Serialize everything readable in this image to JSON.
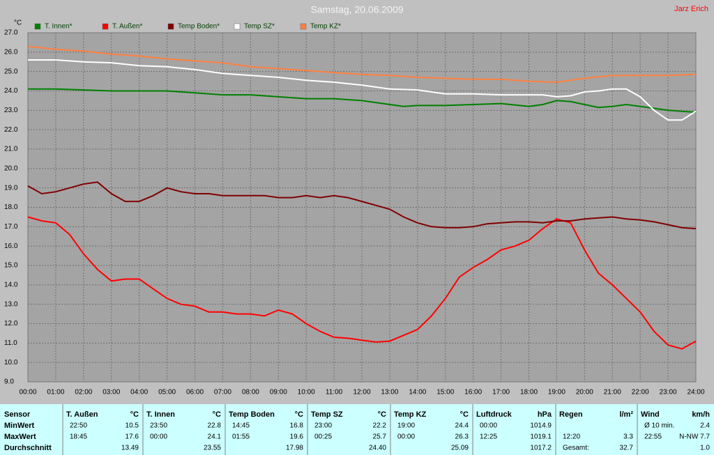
{
  "chart_data": {
    "type": "line",
    "title": "Samstag, 20.06.2009",
    "author": "Jarz Erich",
    "y_label": "°C",
    "series": [
      {
        "name": "T. Innen*",
        "color": "#008000",
        "x": [
          0,
          1,
          2,
          3,
          4,
          5,
          6,
          7,
          8,
          9,
          10,
          11,
          12,
          13,
          13.5,
          14,
          15,
          16,
          17,
          18,
          18.5,
          19,
          19.5,
          20,
          20.5,
          21,
          21.5,
          22,
          22.5,
          23,
          23.5,
          24
        ],
        "values": [
          24.1,
          24.1,
          24.05,
          24.0,
          24.0,
          24.0,
          23.9,
          23.8,
          23.8,
          23.7,
          23.6,
          23.6,
          23.5,
          23.3,
          23.2,
          23.25,
          23.25,
          23.3,
          23.35,
          23.2,
          23.3,
          23.5,
          23.45,
          23.3,
          23.15,
          23.2,
          23.3,
          23.2,
          23.1,
          23.0,
          22.95,
          22.9
        ]
      },
      {
        "name": "T. Außen*",
        "color": "#ff0000",
        "x": [
          0,
          0.5,
          1,
          1.5,
          2,
          2.5,
          3,
          3.5,
          4,
          4.5,
          5,
          5.5,
          6,
          6.5,
          7,
          7.5,
          8,
          8.5,
          9,
          9.5,
          10,
          10.5,
          11,
          11.5,
          12,
          12.5,
          13,
          13.5,
          14,
          14.5,
          15,
          15.5,
          16,
          16.5,
          17,
          17.5,
          18,
          18.5,
          19,
          19.5,
          20,
          20.5,
          21,
          21.5,
          22,
          22.5,
          23,
          23.5,
          24
        ],
        "values": [
          17.5,
          17.3,
          17.2,
          16.6,
          15.6,
          14.8,
          14.2,
          14.3,
          14.3,
          13.8,
          13.3,
          13.0,
          12.9,
          12.6,
          12.6,
          12.5,
          12.5,
          12.4,
          12.7,
          12.5,
          12.0,
          11.6,
          11.3,
          11.25,
          11.15,
          11.05,
          11.1,
          11.4,
          11.7,
          12.4,
          13.3,
          14.4,
          14.9,
          15.3,
          15.8,
          16.0,
          16.3,
          16.9,
          17.4,
          17.2,
          15.8,
          14.6,
          14.0,
          13.3,
          12.6,
          11.6,
          10.9,
          10.7,
          11.1
        ]
      },
      {
        "name": "Temp Boden*",
        "color": "#800000",
        "x": [
          0,
          0.5,
          1,
          1.5,
          2,
          2.5,
          3,
          3.5,
          4,
          4.5,
          5,
          5.5,
          6,
          6.5,
          7,
          7.5,
          8,
          8.5,
          9,
          9.5,
          10,
          10.5,
          11,
          11.5,
          12,
          12.5,
          13,
          13.5,
          14,
          14.5,
          15,
          15.5,
          16,
          16.5,
          17,
          17.5,
          18,
          18.5,
          19,
          19.5,
          20,
          20.5,
          21,
          21.5,
          22,
          22.5,
          23,
          23.5,
          24
        ],
        "values": [
          19.1,
          18.7,
          18.8,
          19.0,
          19.2,
          19.3,
          18.7,
          18.3,
          18.3,
          18.6,
          19.0,
          18.8,
          18.7,
          18.7,
          18.6,
          18.6,
          18.6,
          18.6,
          18.5,
          18.5,
          18.6,
          18.5,
          18.6,
          18.5,
          18.3,
          18.1,
          17.9,
          17.5,
          17.2,
          17.0,
          16.95,
          16.95,
          17.0,
          17.15,
          17.2,
          17.25,
          17.25,
          17.2,
          17.3,
          17.3,
          17.4,
          17.45,
          17.5,
          17.4,
          17.35,
          17.25,
          17.1,
          16.95,
          16.9
        ]
      },
      {
        "name": "Temp SZ*",
        "color": "#ffffff",
        "x": [
          0,
          1,
          2,
          3,
          4,
          5,
          6,
          7,
          8,
          9,
          10,
          11,
          12,
          13,
          14,
          15,
          16,
          17,
          18,
          18.5,
          19,
          19.5,
          20,
          20.5,
          21,
          21.5,
          22,
          22.5,
          23,
          23.5,
          24
        ],
        "values": [
          25.6,
          25.6,
          25.5,
          25.45,
          25.3,
          25.25,
          25.1,
          24.9,
          24.8,
          24.7,
          24.55,
          24.45,
          24.3,
          24.1,
          24.05,
          23.85,
          23.85,
          23.8,
          23.8,
          23.8,
          23.7,
          23.75,
          23.95,
          24.0,
          24.1,
          24.1,
          23.7,
          23.0,
          22.5,
          22.5,
          22.95
        ]
      },
      {
        "name": "Temp KZ*",
        "color": "#ff8040",
        "x": [
          0,
          1,
          2,
          3,
          4,
          5,
          6,
          7,
          8,
          9,
          10,
          11,
          12,
          13,
          14,
          15,
          16,
          17,
          18,
          19,
          20,
          21,
          22,
          23,
          24
        ],
        "values": [
          26.3,
          26.15,
          26.05,
          25.9,
          25.8,
          25.65,
          25.55,
          25.45,
          25.25,
          25.15,
          25.05,
          24.95,
          24.85,
          24.8,
          24.7,
          24.65,
          24.6,
          24.6,
          24.5,
          24.45,
          24.65,
          24.8,
          24.8,
          24.8,
          24.85
        ]
      }
    ],
    "xlim": [
      0,
      24
    ],
    "xticks": [
      {
        "value": 0,
        "label": "00:00"
      },
      {
        "value": 1,
        "label": "01:00"
      },
      {
        "value": 2,
        "label": "02:00"
      },
      {
        "value": 3,
        "label": "03:00"
      },
      {
        "value": 4,
        "label": "04:00"
      },
      {
        "value": 5,
        "label": "05:00"
      },
      {
        "value": 6,
        "label": "06:00"
      },
      {
        "value": 7,
        "label": "07:00"
      },
      {
        "value": 8,
        "label": "08:00"
      },
      {
        "value": 9,
        "label": "09:00"
      },
      {
        "value": 10,
        "label": "10:00"
      },
      {
        "value": 11,
        "label": "11:00"
      },
      {
        "value": 12,
        "label": "12:00"
      },
      {
        "value": 13,
        "label": "13:00"
      },
      {
        "value": 14,
        "label": "14:00"
      },
      {
        "value": 15,
        "label": "15:00"
      },
      {
        "value": 16,
        "label": "16:00"
      },
      {
        "value": 17,
        "label": "17:00"
      },
      {
        "value": 18,
        "label": "18:00"
      },
      {
        "value": 19,
        "label": "19:00"
      },
      {
        "value": 20,
        "label": "20:00"
      },
      {
        "value": 21,
        "label": "21:00"
      },
      {
        "value": 22,
        "label": "22:00"
      },
      {
        "value": 23,
        "label": "23:00"
      },
      {
        "value": 24,
        "label": "24:00"
      }
    ],
    "ylim": [
      9,
      27
    ],
    "yticks": [
      {
        "value": 9,
        "label": "9.0"
      },
      {
        "value": 10,
        "label": "10.0"
      },
      {
        "value": 11,
        "label": "11.0"
      },
      {
        "value": 12,
        "label": "12.0"
      },
      {
        "value": 13,
        "label": "13.0"
      },
      {
        "value": 14,
        "label": "14.0"
      },
      {
        "value": 15,
        "label": "15.0"
      },
      {
        "value": 16,
        "label": "16.0"
      },
      {
        "value": 17,
        "label": "17.0"
      },
      {
        "value": 18,
        "label": "18.0"
      },
      {
        "value": 19,
        "label": "19.0"
      },
      {
        "value": 20,
        "label": "20.0"
      },
      {
        "value": 21,
        "label": "21.0"
      },
      {
        "value": 22,
        "label": "22.0"
      },
      {
        "value": 23,
        "label": "23.0"
      },
      {
        "value": 24,
        "label": "24.0"
      },
      {
        "value": 25,
        "label": "25.0"
      },
      {
        "value": 26,
        "label": "26.0"
      },
      {
        "value": 27,
        "label": "27.0"
      }
    ],
    "grid": true
  },
  "table": {
    "row_labels": [
      "Sensor",
      "MinWert",
      "MaxWert",
      "Durchschnitt"
    ],
    "columns": [
      {
        "name": "T. Außen",
        "unit": "°C",
        "rows": [
          [
            "22:50",
            "10.5"
          ],
          [
            "18:45",
            "17.6"
          ],
          [
            null,
            "13.49"
          ]
        ]
      },
      {
        "name": "T. Innen",
        "unit": "°C",
        "rows": [
          [
            "23:50",
            "22.8"
          ],
          [
            "00:00",
            "24.1"
          ],
          [
            null,
            "23.55"
          ]
        ]
      },
      {
        "name": "Temp Boden",
        "unit": "°C",
        "rows": [
          [
            "14:45",
            "16.8"
          ],
          [
            "01:55",
            "19.6"
          ],
          [
            null,
            "17.98"
          ]
        ]
      },
      {
        "name": "Temp SZ",
        "unit": "°C",
        "rows": [
          [
            "23:00",
            "22.2"
          ],
          [
            "00:25",
            "25.7"
          ],
          [
            null,
            "24.40"
          ]
        ]
      },
      {
        "name": "Temp KZ",
        "unit": "°C",
        "rows": [
          [
            "19:00",
            "24.4"
          ],
          [
            "00:00",
            "26.3"
          ],
          [
            null,
            "25.09"
          ]
        ]
      },
      {
        "name": "Luftdruck",
        "unit": "hPa",
        "rows": [
          [
            "00:00",
            "1014.9"
          ],
          [
            "12:25",
            "1019.1"
          ],
          [
            null,
            "1017.2"
          ]
        ]
      },
      {
        "name": "Regen",
        "unit": "l/m²",
        "rows": [
          [
            null,
            null
          ],
          [
            "12:20",
            "3.3"
          ],
          [
            "Gesamt:",
            "32.7"
          ]
        ]
      },
      {
        "name": "Wind",
        "unit": "km/h",
        "rows": [
          [
            "Ø 10 min.",
            "2.4"
          ],
          [
            "22:55",
            "N-NW 7.7"
          ],
          [
            null,
            "1.0"
          ]
        ]
      }
    ]
  }
}
